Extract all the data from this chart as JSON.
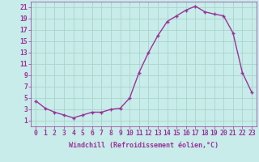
{
  "x": [
    0,
    1,
    2,
    3,
    4,
    5,
    6,
    7,
    8,
    9,
    10,
    11,
    12,
    13,
    14,
    15,
    16,
    17,
    18,
    19,
    20,
    21,
    22,
    23
  ],
  "y": [
    4.5,
    3.2,
    2.5,
    2.0,
    1.5,
    2.0,
    2.5,
    2.5,
    3.0,
    3.2,
    5.0,
    9.5,
    13.0,
    16.0,
    18.5,
    19.5,
    20.5,
    21.2,
    20.2,
    19.8,
    19.5,
    16.5,
    9.5,
    6.0
  ],
  "line_color": "#993399",
  "marker": "+",
  "marker_size": 3.5,
  "line_width": 1.0,
  "bg_color": "#c8ecea",
  "grid_color": "#aad4cc",
  "xlabel": "Windchill (Refroidissement éolien,°C)",
  "xlabel_fontsize": 6.0,
  "tick_fontsize": 5.8,
  "ylim": [
    0,
    22
  ],
  "xlim": [
    -0.5,
    23.5
  ],
  "yticks": [
    1,
    3,
    5,
    7,
    9,
    11,
    13,
    15,
    17,
    19,
    21
  ],
  "xticks": [
    0,
    1,
    2,
    3,
    4,
    5,
    6,
    7,
    8,
    9,
    10,
    11,
    12,
    13,
    14,
    15,
    16,
    17,
    18,
    19,
    20,
    21,
    22,
    23
  ]
}
